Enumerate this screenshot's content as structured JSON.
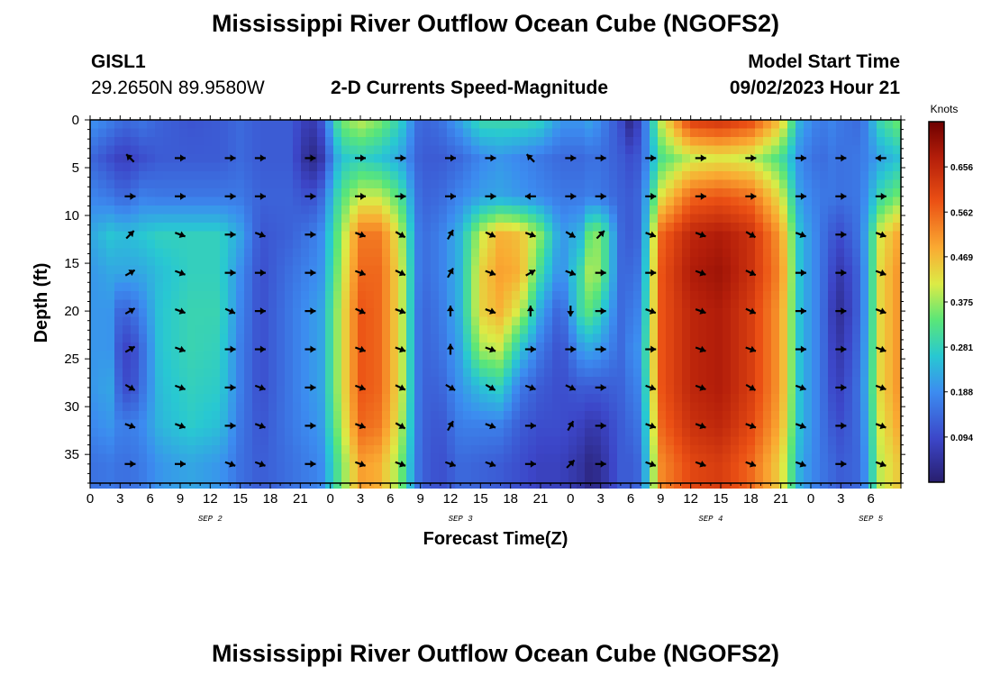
{
  "header": {
    "title": "Mississippi River Outflow Ocean Cube (NGOFS2)",
    "station": "GISL1",
    "coords": "29.2650N  89.9580W",
    "subtitle": "2-D Currents Speed-Magnitude",
    "model_start_label": "Model Start Time",
    "model_start_value": "09/02/2023 Hour 21",
    "footer_title": "Mississippi River Outflow Ocean Cube (NGOFS2)"
  },
  "chart_data": {
    "type": "heatmap",
    "title": "2-D Currents Speed-Magnitude",
    "xlabel": "Forecast Time(Z)",
    "ylabel": "Depth (ft)",
    "x_range_hours": [
      0,
      81
    ],
    "ylim": [
      0,
      38
    ],
    "y_inverted": true,
    "x_tick_labels": [
      "0",
      "3",
      "6",
      "9",
      "12",
      "15",
      "18",
      "21",
      "0",
      "3",
      "6",
      "9",
      "12",
      "15",
      "18",
      "21",
      "0",
      "3",
      "6",
      "9",
      "12",
      "15",
      "18",
      "21",
      "0",
      "3",
      "6"
    ],
    "y_ticks": [
      0,
      5,
      10,
      15,
      20,
      25,
      30,
      35
    ],
    "date_labels": [
      {
        "label": "SEP 2",
        "hour": 12
      },
      {
        "label": "SEP 3",
        "hour": 37
      },
      {
        "label": "SEP 4",
        "hour": 62
      },
      {
        "label": "SEP 5",
        "hour": 78
      }
    ],
    "colorbar": {
      "label": "Knots",
      "range": [
        0,
        0.75
      ],
      "ticks": [
        "0.656",
        "0.562",
        "0.469",
        "0.375",
        "0.281",
        "0.188",
        "0.094"
      ],
      "tick_values": [
        0.656,
        0.562,
        0.469,
        0.375,
        0.281,
        0.188,
        0.094
      ]
    },
    "depth_levels": [
      0,
      4,
      8,
      12,
      16,
      20,
      24,
      28,
      32,
      36
    ],
    "speed_profiles": [
      {
        "hour": 0,
        "v": [
          0.2,
          0.14,
          0.18,
          0.22,
          0.2,
          0.2,
          0.2,
          0.2,
          0.18,
          0.15
        ]
      },
      {
        "hour": 2,
        "v": [
          0.17,
          0.1,
          0.16,
          0.26,
          0.22,
          0.2,
          0.2,
          0.22,
          0.2,
          0.16
        ]
      },
      {
        "hour": 3,
        "v": [
          0.15,
          0.08,
          0.14,
          0.25,
          0.22,
          0.13,
          0.1,
          0.12,
          0.17,
          0.15
        ]
      },
      {
        "hour": 4,
        "v": [
          0.14,
          0.08,
          0.14,
          0.25,
          0.22,
          0.14,
          0.08,
          0.09,
          0.17,
          0.15
        ]
      },
      {
        "hour": 5,
        "v": [
          0.16,
          0.1,
          0.17,
          0.26,
          0.22,
          0.17,
          0.13,
          0.14,
          0.18,
          0.16
        ]
      },
      {
        "hour": 7,
        "v": [
          0.13,
          0.12,
          0.16,
          0.28,
          0.25,
          0.26,
          0.26,
          0.25,
          0.24,
          0.2
        ]
      },
      {
        "hour": 10,
        "v": [
          0.11,
          0.12,
          0.16,
          0.28,
          0.28,
          0.29,
          0.29,
          0.28,
          0.27,
          0.22
        ]
      },
      {
        "hour": 13,
        "v": [
          0.12,
          0.12,
          0.16,
          0.28,
          0.28,
          0.29,
          0.28,
          0.27,
          0.25,
          0.2
        ]
      },
      {
        "hour": 15,
        "v": [
          0.14,
          0.14,
          0.16,
          0.22,
          0.19,
          0.18,
          0.17,
          0.17,
          0.16,
          0.15
        ]
      },
      {
        "hour": 17,
        "v": [
          0.12,
          0.12,
          0.13,
          0.11,
          0.1,
          0.1,
          0.1,
          0.1,
          0.11,
          0.12
        ]
      },
      {
        "hour": 20,
        "v": [
          0.12,
          0.12,
          0.13,
          0.13,
          0.15,
          0.16,
          0.16,
          0.16,
          0.16,
          0.15
        ]
      },
      {
        "hour": 22,
        "v": [
          0.06,
          0.02,
          0.1,
          0.16,
          0.18,
          0.2,
          0.2,
          0.2,
          0.19,
          0.17
        ]
      },
      {
        "hour": 23,
        "v": [
          0.1,
          0.05,
          0.13,
          0.18,
          0.19,
          0.21,
          0.21,
          0.21,
          0.2,
          0.18
        ]
      },
      {
        "hour": 25,
        "v": [
          0.35,
          0.26,
          0.32,
          0.36,
          0.38,
          0.4,
          0.4,
          0.4,
          0.38,
          0.34
        ]
      },
      {
        "hour": 27,
        "v": [
          0.4,
          0.28,
          0.4,
          0.54,
          0.56,
          0.58,
          0.58,
          0.58,
          0.56,
          0.5
        ]
      },
      {
        "hour": 29,
        "v": [
          0.36,
          0.26,
          0.4,
          0.54,
          0.56,
          0.56,
          0.56,
          0.56,
          0.54,
          0.48
        ]
      },
      {
        "hour": 31,
        "v": [
          0.28,
          0.22,
          0.32,
          0.4,
          0.42,
          0.42,
          0.42,
          0.42,
          0.4,
          0.36
        ]
      },
      {
        "hour": 33,
        "v": [
          0.13,
          0.12,
          0.13,
          0.14,
          0.14,
          0.13,
          0.13,
          0.13,
          0.13,
          0.13
        ]
      },
      {
        "hour": 35,
        "v": [
          0.15,
          0.12,
          0.14,
          0.17,
          0.17,
          0.16,
          0.15,
          0.13,
          0.11,
          0.1
        ]
      },
      {
        "hour": 37,
        "v": [
          0.22,
          0.14,
          0.18,
          0.24,
          0.24,
          0.24,
          0.22,
          0.2,
          0.17,
          0.14
        ]
      },
      {
        "hour": 39,
        "v": [
          0.3,
          0.18,
          0.21,
          0.4,
          0.44,
          0.44,
          0.38,
          0.25,
          0.17,
          0.13
        ]
      },
      {
        "hour": 41,
        "v": [
          0.3,
          0.2,
          0.22,
          0.48,
          0.5,
          0.48,
          0.4,
          0.28,
          0.17,
          0.12
        ]
      },
      {
        "hour": 43,
        "v": [
          0.3,
          0.18,
          0.2,
          0.46,
          0.48,
          0.4,
          0.26,
          0.16,
          0.12,
          0.1
        ]
      },
      {
        "hour": 45,
        "v": [
          0.28,
          0.16,
          0.18,
          0.36,
          0.3,
          0.22,
          0.16,
          0.12,
          0.1,
          0.08
        ]
      },
      {
        "hour": 47,
        "v": [
          0.2,
          0.14,
          0.16,
          0.2,
          0.18,
          0.12,
          0.1,
          0.1,
          0.1,
          0.08
        ]
      },
      {
        "hour": 49,
        "v": [
          0.2,
          0.14,
          0.16,
          0.24,
          0.3,
          0.3,
          0.2,
          0.12,
          0.08,
          0.05
        ]
      },
      {
        "hour": 50,
        "v": [
          0.22,
          0.15,
          0.17,
          0.36,
          0.4,
          0.34,
          0.22,
          0.12,
          0.06,
          0.02
        ]
      },
      {
        "hour": 51,
        "v": [
          0.18,
          0.15,
          0.16,
          0.36,
          0.36,
          0.28,
          0.2,
          0.12,
          0.07,
          0.04
        ]
      },
      {
        "hour": 53,
        "v": [
          0.1,
          0.12,
          0.13,
          0.14,
          0.14,
          0.14,
          0.14,
          0.13,
          0.12,
          0.12
        ]
      },
      {
        "hour": 54,
        "v": [
          0.02,
          0.1,
          0.12,
          0.12,
          0.14,
          0.16,
          0.18,
          0.16,
          0.14,
          0.12
        ]
      },
      {
        "hour": 55,
        "v": [
          0.1,
          0.12,
          0.14,
          0.14,
          0.16,
          0.18,
          0.2,
          0.18,
          0.16,
          0.14
        ]
      },
      {
        "hour": 57,
        "v": [
          0.4,
          0.32,
          0.42,
          0.56,
          0.58,
          0.58,
          0.58,
          0.58,
          0.56,
          0.52
        ]
      },
      {
        "hour": 60,
        "v": [
          0.62,
          0.4,
          0.56,
          0.66,
          0.68,
          0.66,
          0.66,
          0.66,
          0.64,
          0.6
        ]
      },
      {
        "hour": 63,
        "v": [
          0.64,
          0.42,
          0.58,
          0.68,
          0.7,
          0.68,
          0.68,
          0.68,
          0.66,
          0.62
        ]
      },
      {
        "hour": 66,
        "v": [
          0.6,
          0.4,
          0.55,
          0.64,
          0.64,
          0.62,
          0.62,
          0.62,
          0.6,
          0.56
        ]
      },
      {
        "hour": 69,
        "v": [
          0.46,
          0.32,
          0.42,
          0.5,
          0.52,
          0.5,
          0.5,
          0.5,
          0.48,
          0.44
        ]
      },
      {
        "hour": 71,
        "v": [
          0.22,
          0.18,
          0.2,
          0.24,
          0.24,
          0.24,
          0.24,
          0.24,
          0.24,
          0.22
        ]
      },
      {
        "hour": 73,
        "v": [
          0.16,
          0.14,
          0.16,
          0.16,
          0.16,
          0.16,
          0.16,
          0.16,
          0.16,
          0.16
        ]
      },
      {
        "hour": 74,
        "v": [
          0.18,
          0.16,
          0.16,
          0.12,
          0.1,
          0.08,
          0.09,
          0.1,
          0.12,
          0.14
        ]
      },
      {
        "hour": 75,
        "v": [
          0.16,
          0.15,
          0.15,
          0.1,
          0.06,
          0.04,
          0.06,
          0.08,
          0.1,
          0.12
        ]
      },
      {
        "hour": 77,
        "v": [
          0.14,
          0.16,
          0.16,
          0.16,
          0.14,
          0.14,
          0.15,
          0.16,
          0.15,
          0.14
        ]
      },
      {
        "hour": 79,
        "v": [
          0.3,
          0.22,
          0.3,
          0.42,
          0.44,
          0.44,
          0.44,
          0.44,
          0.42,
          0.4
        ]
      },
      {
        "hour": 81,
        "v": [
          0.36,
          0.26,
          0.36,
          0.5,
          0.52,
          0.52,
          0.52,
          0.52,
          0.5,
          0.46
        ]
      }
    ],
    "vectors": {
      "hours": [
        4,
        9,
        14,
        17,
        22,
        27,
        31,
        36,
        40,
        44,
        48,
        51,
        56,
        61,
        66,
        71,
        75,
        79
      ],
      "depths": [
        4,
        8,
        12,
        16,
        20,
        24,
        28,
        32,
        36
      ],
      "directions_deg": [
        [
          225,
          0,
          0,
          0,
          0,
          0,
          0,
          0,
          0,
          225,
          0,
          0,
          0,
          0,
          0,
          0,
          0,
          180
        ],
        [
          0,
          0,
          0,
          0,
          0,
          0,
          0,
          0,
          0,
          180,
          0,
          0,
          0,
          0,
          0,
          0,
          0,
          0
        ],
        [
          315,
          20,
          0,
          20,
          0,
          20,
          30,
          300,
          25,
          20,
          30,
          315,
          20,
          20,
          30,
          20,
          0,
          20
        ],
        [
          330,
          20,
          0,
          0,
          0,
          20,
          25,
          300,
          20,
          330,
          20,
          0,
          0,
          20,
          25,
          0,
          0,
          20
        ],
        [
          330,
          20,
          25,
          0,
          0,
          25,
          20,
          270,
          20,
          270,
          90,
          0,
          20,
          20,
          25,
          0,
          0,
          20
        ],
        [
          330,
          20,
          0,
          0,
          0,
          20,
          20,
          270,
          20,
          0,
          0,
          0,
          0,
          20,
          20,
          0,
          0,
          20
        ],
        [
          30,
          20,
          0,
          20,
          0,
          20,
          25,
          30,
          30,
          20,
          25,
          0,
          20,
          20,
          30,
          20,
          0,
          20
        ],
        [
          20,
          20,
          0,
          20,
          0,
          20,
          30,
          300,
          20,
          0,
          300,
          0,
          20,
          20,
          20,
          20,
          0,
          20
        ],
        [
          0,
          0,
          20,
          20,
          0,
          20,
          20,
          20,
          20,
          0,
          315,
          0,
          20,
          20,
          20,
          20,
          0,
          20
        ]
      ]
    }
  }
}
